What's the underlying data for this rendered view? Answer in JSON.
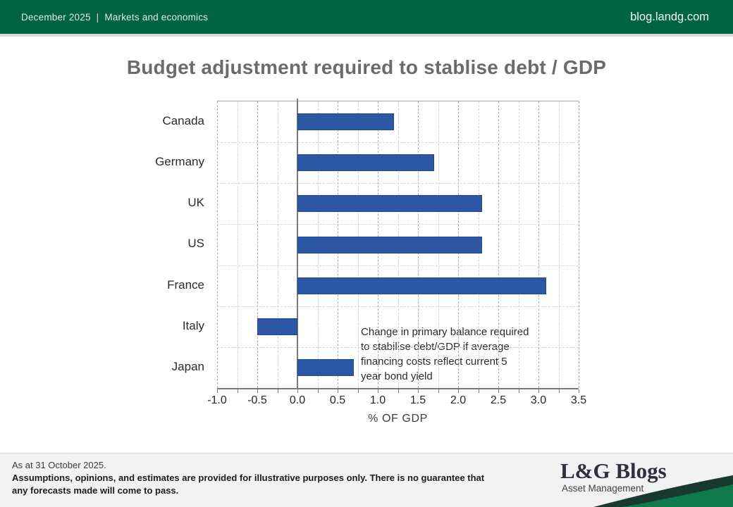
{
  "header": {
    "date": "December 2025",
    "separator": "|",
    "section": "Markets and economics",
    "site": "blog.landg.com"
  },
  "chart_data": {
    "type": "bar",
    "orientation": "horizontal",
    "title": "Budget adjustment required to stablise debt / GDP",
    "categories": [
      "Canada",
      "Germany",
      "UK",
      "US",
      "France",
      "Italy",
      "Japan"
    ],
    "values": [
      1.2,
      1.7,
      2.3,
      2.3,
      3.1,
      -0.5,
      0.7
    ],
    "xlabel": "% OF GDP",
    "ylabel": "",
    "xlim": [
      -1.0,
      3.5
    ],
    "xtick_step": 0.5,
    "minor_grid_step": 0.25,
    "xticklabels": [
      "-1.0",
      "-0.5",
      "0.0",
      "0.5",
      "1.0",
      "1.5",
      "2.0",
      "2.5",
      "3.0",
      "3.5"
    ],
    "grid": true,
    "legend": "none",
    "annotation": {
      "lines": [
        "Change in primary balance required",
        "to stabilise debt/GDP if average",
        "financing costs reflect current 5",
        "year bond yield"
      ]
    }
  },
  "footer": {
    "as_at": "As at 31 October 2025.",
    "disclaimer_lines": [
      "Assumptions, opinions, and estimates are provided for illustrative purposes only. There is no guarantee that",
      "any forecasts made will come to pass."
    ]
  },
  "logo": {
    "name": "L&G Blogs",
    "sub": "Asset Management"
  },
  "colors": {
    "header_green": "#006341",
    "bar_blue": "#2B57A5",
    "swoosh_dark": "#17392F",
    "swoosh_green": "#0E7A4B",
    "title_gray": "#6A6B6E"
  }
}
